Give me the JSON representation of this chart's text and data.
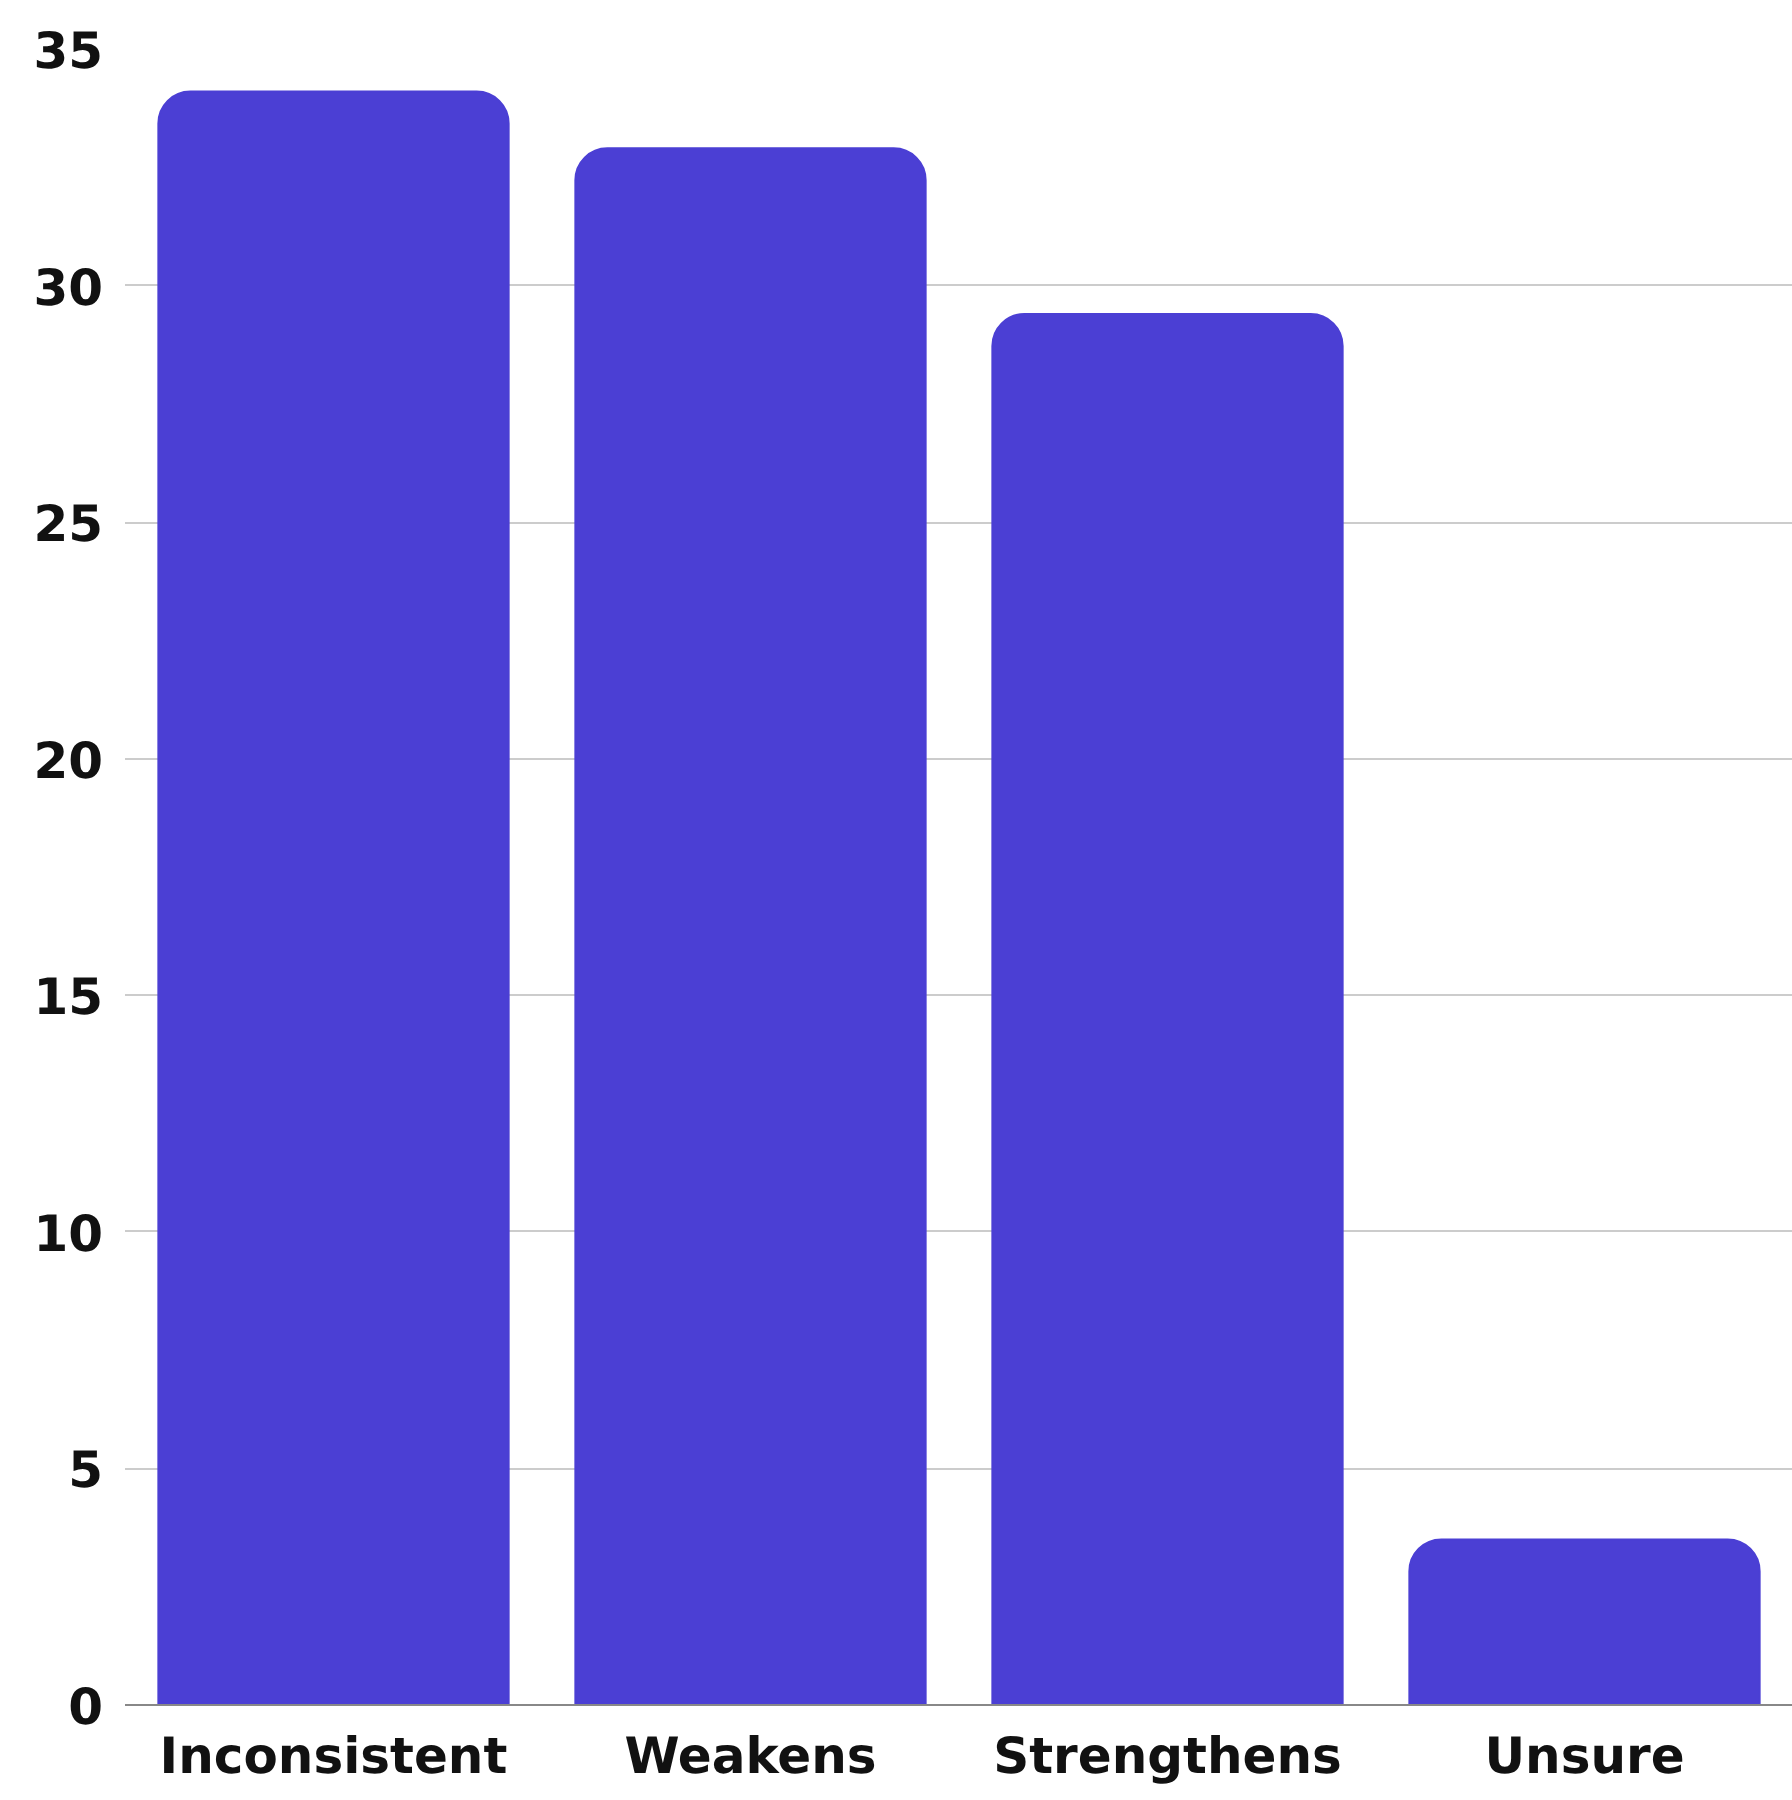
{
  "chart_data": {
    "type": "bar",
    "categories": [
      "Inconsistent",
      "Weakens",
      "Strengthens",
      "Unsure"
    ],
    "values": [
      34.1,
      32.9,
      29.4,
      3.5
    ],
    "color": "#4b3fd4",
    "ylim": [
      0,
      35
    ],
    "yticks": [
      0,
      5,
      10,
      15,
      20,
      25,
      30,
      35
    ],
    "grid": "y"
  }
}
